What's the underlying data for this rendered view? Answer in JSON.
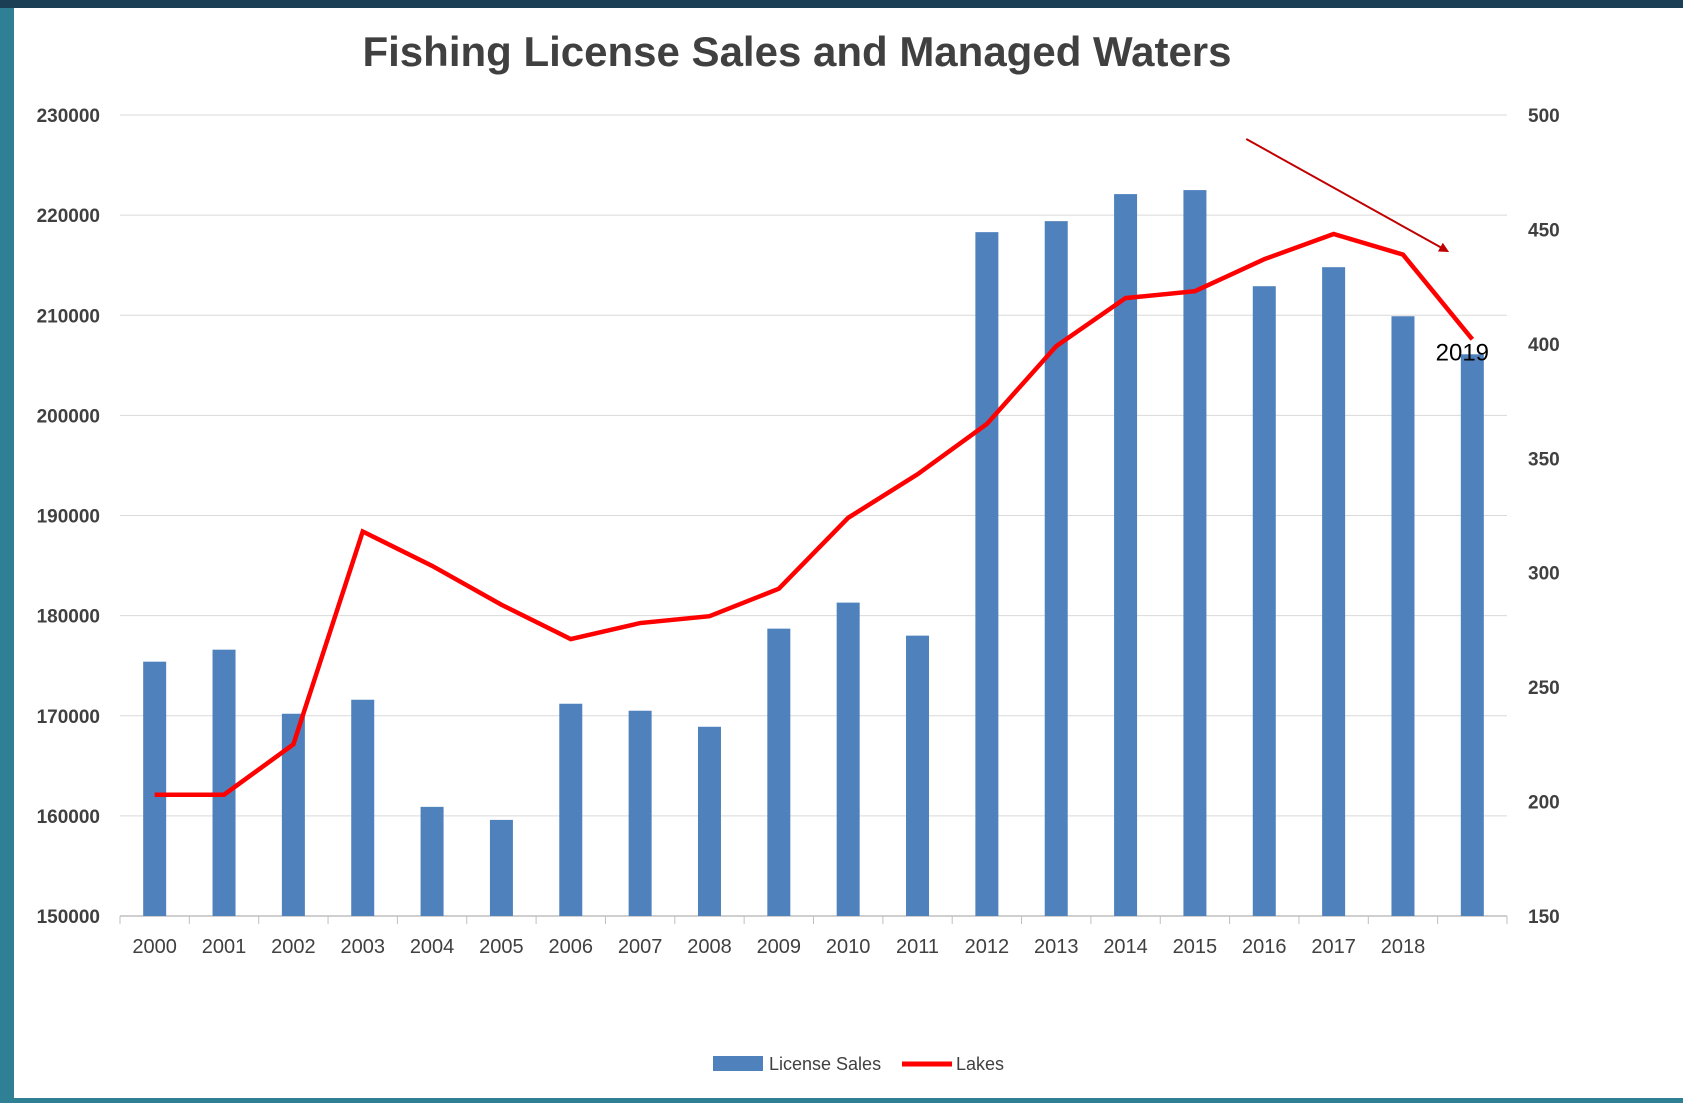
{
  "chart_data": {
    "type": "bar",
    "title": "Fishing License Sales and Managed Waters",
    "categories": [
      "2000",
      "2001",
      "2002",
      "2003",
      "2004",
      "2005",
      "2006",
      "2007",
      "2008",
      "2009",
      "2010",
      "2011",
      "2012",
      "2013",
      "2014",
      "2015",
      "2016",
      "2017",
      "2018",
      ""
    ],
    "series": [
      {
        "name": "License Sales",
        "type": "bar",
        "axis": "left",
        "color": "#4f81bd",
        "values": [
          175400,
          176600,
          170200,
          171600,
          160900,
          159600,
          171200,
          170500,
          168900,
          178700,
          181300,
          178000,
          218300,
          219400,
          222100,
          222500,
          212900,
          214800,
          209900,
          206100
        ]
      },
      {
        "name": "Lakes",
        "type": "line",
        "axis": "right",
        "color": "#ff0000",
        "values": [
          203,
          203,
          225,
          318,
          303,
          286,
          271,
          278,
          281,
          293,
          324,
          343,
          365,
          399,
          420,
          423,
          437,
          448,
          439,
          402
        ]
      }
    ],
    "left_axis": {
      "min": 150000,
      "max": 230000,
      "step": 10000,
      "ticks": [
        "150000",
        "160000",
        "170000",
        "180000",
        "190000",
        "200000",
        "210000",
        "220000",
        "230000"
      ]
    },
    "right_axis": {
      "min": 150,
      "max": 500,
      "step": 50,
      "ticks": [
        "150",
        "200",
        "250",
        "300",
        "350",
        "400",
        "450",
        "500"
      ]
    },
    "grid": true,
    "legend_position": "bottom",
    "annotations": [
      {
        "text": "2019",
        "type": "label",
        "near_category_index": 19
      },
      {
        "type": "arrow",
        "color": "#c00000",
        "direction": "down-right"
      }
    ]
  }
}
